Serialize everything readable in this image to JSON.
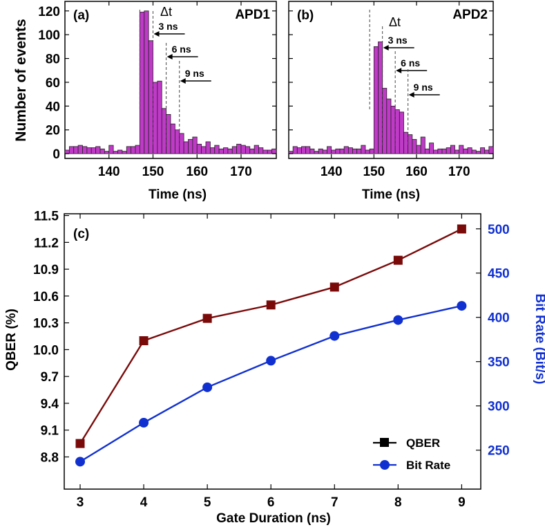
{
  "chart_data": [
    {
      "type": "bar",
      "panel_label": "(a)",
      "title": "APD1",
      "xlabel": "Time (ns)",
      "ylabel": "Number of events",
      "xlim": [
        130,
        178
      ],
      "ylim": [
        -4,
        128
      ],
      "xticks": [
        140,
        150,
        160,
        170
      ],
      "yticks": [
        0,
        20,
        40,
        60,
        80,
        100,
        120
      ],
      "bin_width": 1,
      "bin_start": 130,
      "values": [
        3,
        6,
        6,
        7,
        6,
        5,
        5,
        6,
        4,
        2,
        7,
        2,
        3,
        2,
        6,
        6,
        7,
        119,
        120,
        95,
        60,
        61,
        38,
        33,
        25,
        20,
        17,
        10,
        12,
        14,
        8,
        6,
        10,
        5,
        7,
        4,
        5,
        4,
        6,
        8,
        7,
        6,
        4,
        7,
        5,
        3,
        3,
        4
      ],
      "delta_label": "Δt",
      "annotations": [
        {
          "label": "3 ns",
          "time": 150
        },
        {
          "label": "6 ns",
          "time": 153
        },
        {
          "label": "9 ns",
          "time": 156
        }
      ]
    },
    {
      "type": "bar",
      "panel_label": "(b)",
      "title": "APD2",
      "xlabel": "Time (ns)",
      "ylabel": "",
      "xlim": [
        130,
        178
      ],
      "ylim": [
        -4,
        128
      ],
      "xticks": [
        140,
        150,
        160,
        170
      ],
      "yticks": [
        0,
        20,
        40,
        60,
        80,
        100,
        120
      ],
      "bin_width": 1,
      "bin_start": 130,
      "values": [
        2,
        6,
        5,
        6,
        6,
        4,
        2,
        4,
        3,
        6,
        3,
        4,
        4,
        6,
        5,
        4,
        4,
        7,
        3,
        4,
        90,
        94,
        55,
        46,
        40,
        37,
        35,
        18,
        16,
        12,
        7,
        14,
        4,
        9,
        3,
        4,
        4,
        5,
        7,
        3,
        7,
        4,
        5,
        3,
        2,
        5,
        3,
        6
      ],
      "delta_label": "Δt",
      "annotations": [
        {
          "label": "3 ns",
          "time": 152
        },
        {
          "label": "6 ns",
          "time": 155
        },
        {
          "label": "9 ns",
          "time": 158
        }
      ]
    },
    {
      "type": "line",
      "panel_label": "(c)",
      "xlabel": "Gate Duration (ns)",
      "ylabel": "QBER (%)",
      "y2label": "Bit Rate (Bit/s)",
      "x": [
        3,
        4,
        5,
        6,
        7,
        8,
        9
      ],
      "xlim": [
        2.75,
        9.3
      ],
      "ylim": [
        8.44,
        11.52
      ],
      "y2lim": [
        206,
        517
      ],
      "yticks": [
        8.8,
        9.1,
        9.4,
        9.7,
        10.0,
        10.3,
        10.6,
        10.9,
        11.2,
        11.5
      ],
      "y2ticks": [
        250,
        300,
        350,
        400,
        450,
        500
      ],
      "series": [
        {
          "name": "QBER",
          "axis": "left",
          "marker": "square",
          "color": "#7a0a0a",
          "values": [
            8.95,
            10.1,
            10.35,
            10.5,
            10.7,
            11.0,
            11.35
          ]
        },
        {
          "name": "Bit Rate",
          "axis": "right",
          "marker": "circle",
          "color": "#1030d0",
          "values": [
            237,
            281,
            321,
            351,
            379,
            397,
            413
          ]
        }
      ],
      "legend": "bottom-right"
    }
  ]
}
